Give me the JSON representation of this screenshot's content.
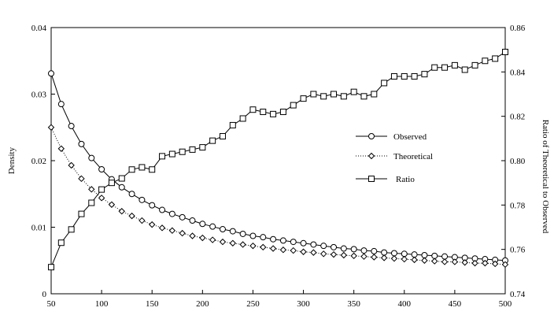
{
  "chart_data": {
    "type": "line",
    "title": "",
    "xlabel": "",
    "ylabel": "Density",
    "y2label": "Ratio of Theoretical to Observed",
    "xlim": [
      50,
      500
    ],
    "ylim": [
      0,
      0.04
    ],
    "y2lim": [
      0.74,
      0.86
    ],
    "grid": false,
    "legend_position": "right",
    "x_ticks": [
      "50",
      "100",
      "150",
      "200",
      "250",
      "300",
      "350",
      "400",
      "450",
      "500"
    ],
    "y_ticks": [
      "0",
      "0.01",
      "0.02",
      "0.03",
      "0.04"
    ],
    "y2_ticks": [
      "0.74",
      "0.76",
      "0.78",
      "0.80",
      "0.82",
      "0.84",
      "0.86"
    ],
    "x": [
      50,
      60,
      70,
      80,
      90,
      100,
      110,
      120,
      130,
      140,
      150,
      160,
      170,
      180,
      190,
      200,
      210,
      220,
      230,
      240,
      250,
      260,
      270,
      280,
      290,
      300,
      310,
      320,
      330,
      340,
      350,
      360,
      370,
      380,
      390,
      400,
      410,
      420,
      430,
      440,
      450,
      460,
      470,
      480,
      490,
      500
    ],
    "series": [
      {
        "name": "Observed",
        "axis": "left",
        "marker": "circle",
        "line": "solid",
        "values": [
          0.0331,
          0.0285,
          0.0252,
          0.0225,
          0.0204,
          0.0187,
          0.0172,
          0.016,
          0.015,
          0.0141,
          0.0133,
          0.0126,
          0.012,
          0.0115,
          0.011,
          0.0105,
          0.0101,
          0.0097,
          0.0094,
          0.009,
          0.0087,
          0.0085,
          0.0082,
          0.008,
          0.0078,
          0.0076,
          0.0074,
          0.0072,
          0.007,
          0.0068,
          0.0067,
          0.0065,
          0.0064,
          0.0062,
          0.0061,
          0.006,
          0.0059,
          0.0058,
          0.0057,
          0.0056,
          0.0055,
          0.0054,
          0.0053,
          0.0052,
          0.0051,
          0.005
        ]
      },
      {
        "name": "Theoretical",
        "axis": "left",
        "marker": "diamond",
        "line": "dotted",
        "values": [
          0.025,
          0.0218,
          0.0193,
          0.0173,
          0.0157,
          0.0144,
          0.0134,
          0.0124,
          0.0117,
          0.011,
          0.0104,
          0.0099,
          0.0095,
          0.0091,
          0.0087,
          0.0084,
          0.0081,
          0.0078,
          0.0076,
          0.0074,
          0.0072,
          0.007,
          0.0068,
          0.0066,
          0.0065,
          0.0063,
          0.0062,
          0.006,
          0.0059,
          0.0058,
          0.0057,
          0.0056,
          0.0055,
          0.0054,
          0.0053,
          0.0052,
          0.0051,
          0.005,
          0.0049,
          0.0048,
          0.0048,
          0.0047,
          0.0046,
          0.0046,
          0.0045,
          0.0044
        ]
      },
      {
        "name": "Ratio",
        "axis": "right",
        "marker": "square",
        "line": "solid",
        "values": [
          0.752,
          0.763,
          0.769,
          0.776,
          0.781,
          0.787,
          0.79,
          0.792,
          0.796,
          0.797,
          0.796,
          0.802,
          0.803,
          0.804,
          0.805,
          0.806,
          0.809,
          0.811,
          0.816,
          0.819,
          0.823,
          0.822,
          0.821,
          0.822,
          0.825,
          0.828,
          0.83,
          0.829,
          0.83,
          0.829,
          0.831,
          0.829,
          0.83,
          0.835,
          0.838,
          0.838,
          0.838,
          0.839,
          0.842,
          0.842,
          0.843,
          0.841,
          0.843,
          0.845,
          0.846,
          0.849
        ]
      }
    ]
  }
}
